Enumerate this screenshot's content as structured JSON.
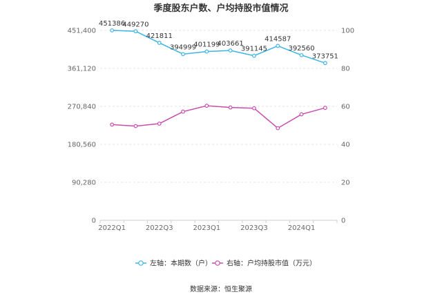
{
  "chart_data": {
    "type": "line",
    "title": "季度股东户数、户均持股市值情况",
    "x": [
      "2022Q1",
      "2022Q2",
      "2022Q3",
      "2022Q4",
      "2023Q1",
      "2023Q2",
      "2023Q3",
      "2023Q4",
      "2024Q1",
      "2024Q2"
    ],
    "x_tick_labels": [
      "2022Q1",
      "2022Q3",
      "2023Q1",
      "2023Q3",
      "2024Q1"
    ],
    "y_left": {
      "ticks": [
        "0",
        "90,280",
        "180,560",
        "270,840",
        "361,120",
        "451,400"
      ],
      "min": 0,
      "max": 451400
    },
    "y_right": {
      "ticks": [
        "0",
        "20",
        "40",
        "60",
        "80",
        "100"
      ],
      "min": 0,
      "max": 100
    },
    "series": [
      {
        "name": "左轴：本期数（户）",
        "axis": "left",
        "color": "#3ab4e6",
        "values": [
          451386,
          449270,
          421811,
          394999,
          401199,
          403661,
          391145,
          414587,
          392560,
          373751
        ],
        "labels": [
          "451386",
          "449270",
          "421811",
          "394999",
          "401199",
          "403661",
          "391145",
          "414587",
          "392560",
          "373751"
        ]
      },
      {
        "name": "右轴：户均持股市值（万元）",
        "axis": "right",
        "color": "#c94bb0",
        "values": [
          50.4,
          49.6,
          50.9,
          57.2,
          60.3,
          59.4,
          59.0,
          48.5,
          55.8,
          59.2
        ]
      }
    ],
    "grid": true,
    "legend": "bottom-center"
  },
  "source": "数据来源：恒生聚源"
}
